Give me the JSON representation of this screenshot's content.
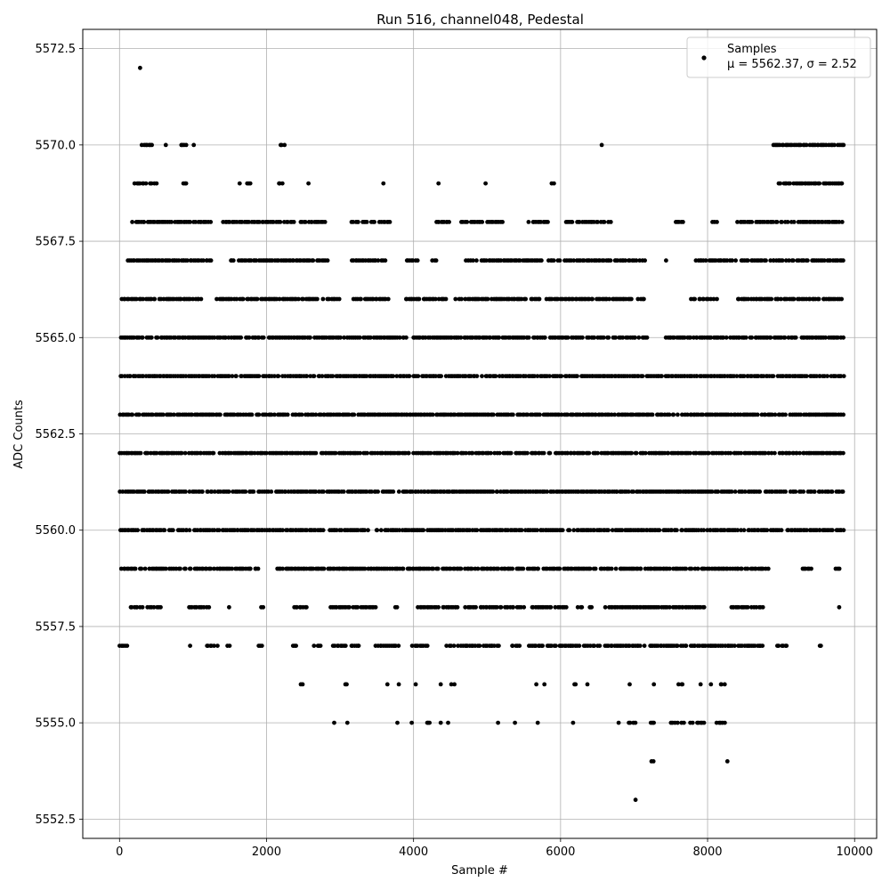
{
  "chart_data": {
    "type": "scatter",
    "title": "Run 516, channel048, Pedestal",
    "xlabel": "Sample #",
    "ylabel": "ADC Counts",
    "xlim": [
      -500,
      10300
    ],
    "ylim": [
      5552.0,
      5573.0
    ],
    "x_ticks": [
      0,
      2000,
      4000,
      6000,
      8000,
      10000
    ],
    "x_tick_labels": [
      "0",
      "2000",
      "4000",
      "6000",
      "8000",
      "10000"
    ],
    "y_ticks": [
      5552.5,
      5555.0,
      5557.5,
      5560.0,
      5562.5,
      5565.0,
      5567.5,
      5570.0,
      5572.5
    ],
    "y_tick_labels": [
      "5552.5",
      "5555.0",
      "5557.5",
      "5560.0",
      "5562.5",
      "5565.0",
      "5567.5",
      "5570.0",
      "5572.5"
    ],
    "grid": true,
    "legend_position": "top-right",
    "legend": {
      "label": "Samples",
      "stats": "μ = 5562.37, σ = 2.52"
    },
    "series": [
      {
        "name": "Samples",
        "color": "#000000",
        "marker": "dot",
        "level_ranges": [
          {
            "y": 5572,
            "x_ranges": [
              [
                270,
                290
              ]
            ]
          },
          {
            "y": 5570,
            "x_ranges": [
              [
                300,
                460
              ],
              [
                620,
                640
              ],
              [
                830,
                920
              ],
              [
                1000,
                1020
              ],
              [
                2180,
                2250
              ],
              [
                6550,
                6570
              ],
              [
                8880,
                9860
              ]
            ]
          },
          {
            "y": 5569,
            "x_ranges": [
              [
                200,
                520
              ],
              [
                850,
                930
              ],
              [
                1620,
                1650
              ],
              [
                1730,
                1800
              ],
              [
                2150,
                2230
              ],
              [
                2560,
                2580
              ],
              [
                3580,
                3600
              ],
              [
                4330,
                4350
              ],
              [
                4970,
                4990
              ],
              [
                5880,
                5920
              ],
              [
                8950,
                9850
              ]
            ]
          },
          {
            "y": 5568,
            "x_ranges": [
              [
                160,
                1250
              ],
              [
                1400,
                2380
              ],
              [
                2450,
                2800
              ],
              [
                3150,
                3700
              ],
              [
                4270,
                4500
              ],
              [
                4640,
                5220
              ],
              [
                5560,
                5850
              ],
              [
                6060,
                6690
              ],
              [
                7550,
                7680
              ],
              [
                8060,
                8130
              ],
              [
                8380,
                9850
              ]
            ]
          },
          {
            "y": 5567,
            "x_ranges": [
              [
                100,
                1260
              ],
              [
                1500,
                2840
              ],
              [
                3150,
                3620
              ],
              [
                3870,
                4060
              ],
              [
                4250,
                4330
              ],
              [
                4700,
                6700
              ],
              [
                6720,
                7160
              ],
              [
                7420,
                7450
              ],
              [
                7840,
                9860
              ]
            ]
          },
          {
            "y": 5566,
            "x_ranges": [
              [
                20,
                1120
              ],
              [
                1320,
                3000
              ],
              [
                3180,
                3660
              ],
              [
                3880,
                4460
              ],
              [
                4570,
                5730
              ],
              [
                5780,
                6980
              ],
              [
                7050,
                7150
              ],
              [
                7770,
                8140
              ],
              [
                8400,
                9850
              ]
            ]
          },
          {
            "y": 5565,
            "x_ranges": [
              [
                0,
                7200
              ],
              [
                7400,
                9860
              ]
            ]
          },
          {
            "y": 5564,
            "x_ranges": [
              [
                0,
                7130
              ],
              [
                7160,
                9860
              ]
            ]
          },
          {
            "y": 5563,
            "x_ranges": [
              [
                0,
                9860
              ]
            ]
          },
          {
            "y": 5562,
            "x_ranges": [
              [
                0,
                9860
              ]
            ]
          },
          {
            "y": 5561,
            "x_ranges": [
              [
                0,
                9860
              ]
            ]
          },
          {
            "y": 5560,
            "x_ranges": [
              [
                0,
                9860
              ]
            ]
          },
          {
            "y": 5559,
            "x_ranges": [
              [
                20,
                1900
              ],
              [
                2130,
                5530
              ],
              [
                5550,
                8870
              ],
              [
                9280,
                9420
              ],
              [
                9740,
                9800
              ]
            ]
          },
          {
            "y": 5558,
            "x_ranges": [
              [
                140,
                580
              ],
              [
                930,
                1230
              ],
              [
                1480,
                1500
              ],
              [
                1920,
                1960
              ],
              [
                2360,
                2560
              ],
              [
                2850,
                3500
              ],
              [
                3730,
                3780
              ],
              [
                4050,
                4620
              ],
              [
                4700,
                5520
              ],
              [
                5600,
                6100
              ],
              [
                6230,
                6310
              ],
              [
                6380,
                6440
              ],
              [
                6600,
                8000
              ],
              [
                8280,
                8780
              ],
              [
                9780,
                9800
              ]
            ]
          },
          {
            "y": 5557,
            "x_ranges": [
              [
                0,
                120
              ],
              [
                950,
                970
              ],
              [
                1180,
                1360
              ],
              [
                1460,
                1500
              ],
              [
                1880,
                1940
              ],
              [
                2360,
                2420
              ],
              [
                2630,
                2760
              ],
              [
                2900,
                3300
              ],
              [
                3480,
                3800
              ],
              [
                3980,
                4200
              ],
              [
                4400,
                5180
              ],
              [
                5320,
                5450
              ],
              [
                5560,
                6550
              ],
              [
                6600,
                7150
              ],
              [
                7200,
                8760
              ],
              [
                8930,
                9120
              ],
              [
                9520,
                9560
              ]
            ]
          },
          {
            "y": 5556,
            "x_ranges": [
              [
                2460,
                2500
              ],
              [
                3060,
                3100
              ],
              [
                3630,
                3660
              ],
              [
                3790,
                3810
              ],
              [
                4020,
                4040
              ],
              [
                4360,
                4380
              ],
              [
                4510,
                4560
              ],
              [
                5660,
                5680
              ],
              [
                5770,
                5790
              ],
              [
                6180,
                6220
              ],
              [
                6350,
                6380
              ],
              [
                6930,
                6950
              ],
              [
                7260,
                7280
              ],
              [
                7600,
                7680
              ],
              [
                7890,
                7920
              ],
              [
                8030,
                8060
              ],
              [
                8160,
                8240
              ]
            ]
          },
          {
            "y": 5555,
            "x_ranges": [
              [
                2910,
                2930
              ],
              [
                3090,
                3110
              ],
              [
                3770,
                3790
              ],
              [
                3960,
                3990
              ],
              [
                4170,
                4230
              ],
              [
                4360,
                4380
              ],
              [
                4460,
                4480
              ],
              [
                5140,
                5160
              ],
              [
                5370,
                5390
              ],
              [
                5680,
                5700
              ],
              [
                6160,
                6180
              ],
              [
                6780,
                6800
              ],
              [
                6920,
                7050
              ],
              [
                7210,
                7330
              ],
              [
                7460,
                7700
              ],
              [
                7760,
                7800
              ],
              [
                7840,
                7960
              ],
              [
                8120,
                8240
              ]
            ]
          },
          {
            "y": 5554,
            "x_ranges": [
              [
                7230,
                7280
              ],
              [
                8260,
                8280
              ]
            ]
          },
          {
            "y": 5553,
            "x_ranges": [
              [
                7010,
                7030
              ]
            ]
          }
        ]
      }
    ]
  }
}
